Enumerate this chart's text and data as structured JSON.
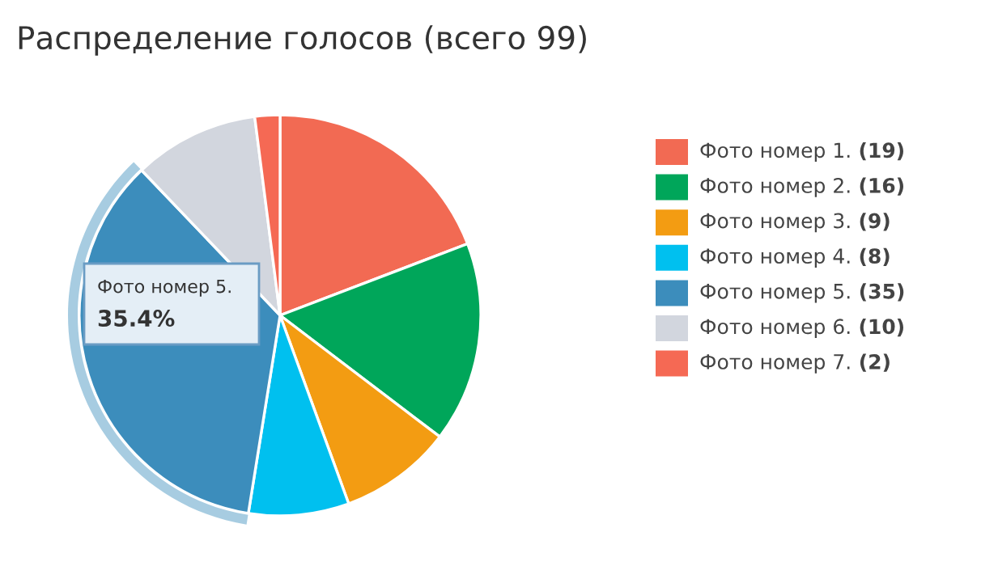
{
  "chart_data": {
    "type": "pie",
    "title": "Распределение голосов (всего 99)",
    "categories": [
      "Фото номер 1.",
      "Фото номер 2.",
      "Фото номер 3.",
      "Фото номер 4.",
      "Фото номер 5.",
      "Фото номер 6.",
      "Фото номер 7."
    ],
    "values": [
      19,
      16,
      9,
      8,
      35,
      10,
      2
    ],
    "value_labels": [
      "(19)",
      "(16)",
      "(9)",
      "(8)",
      "(35)",
      "(10)",
      "(2)"
    ],
    "colors": [
      "#f26a53",
      "#00a65a",
      "#f39c12",
      "#00c0ef",
      "#3c8dbc",
      "#d2d6de",
      "#f56954"
    ],
    "legend": "right",
    "annotations": [
      "Фото номер 5.",
      "35.4%"
    ]
  }
}
